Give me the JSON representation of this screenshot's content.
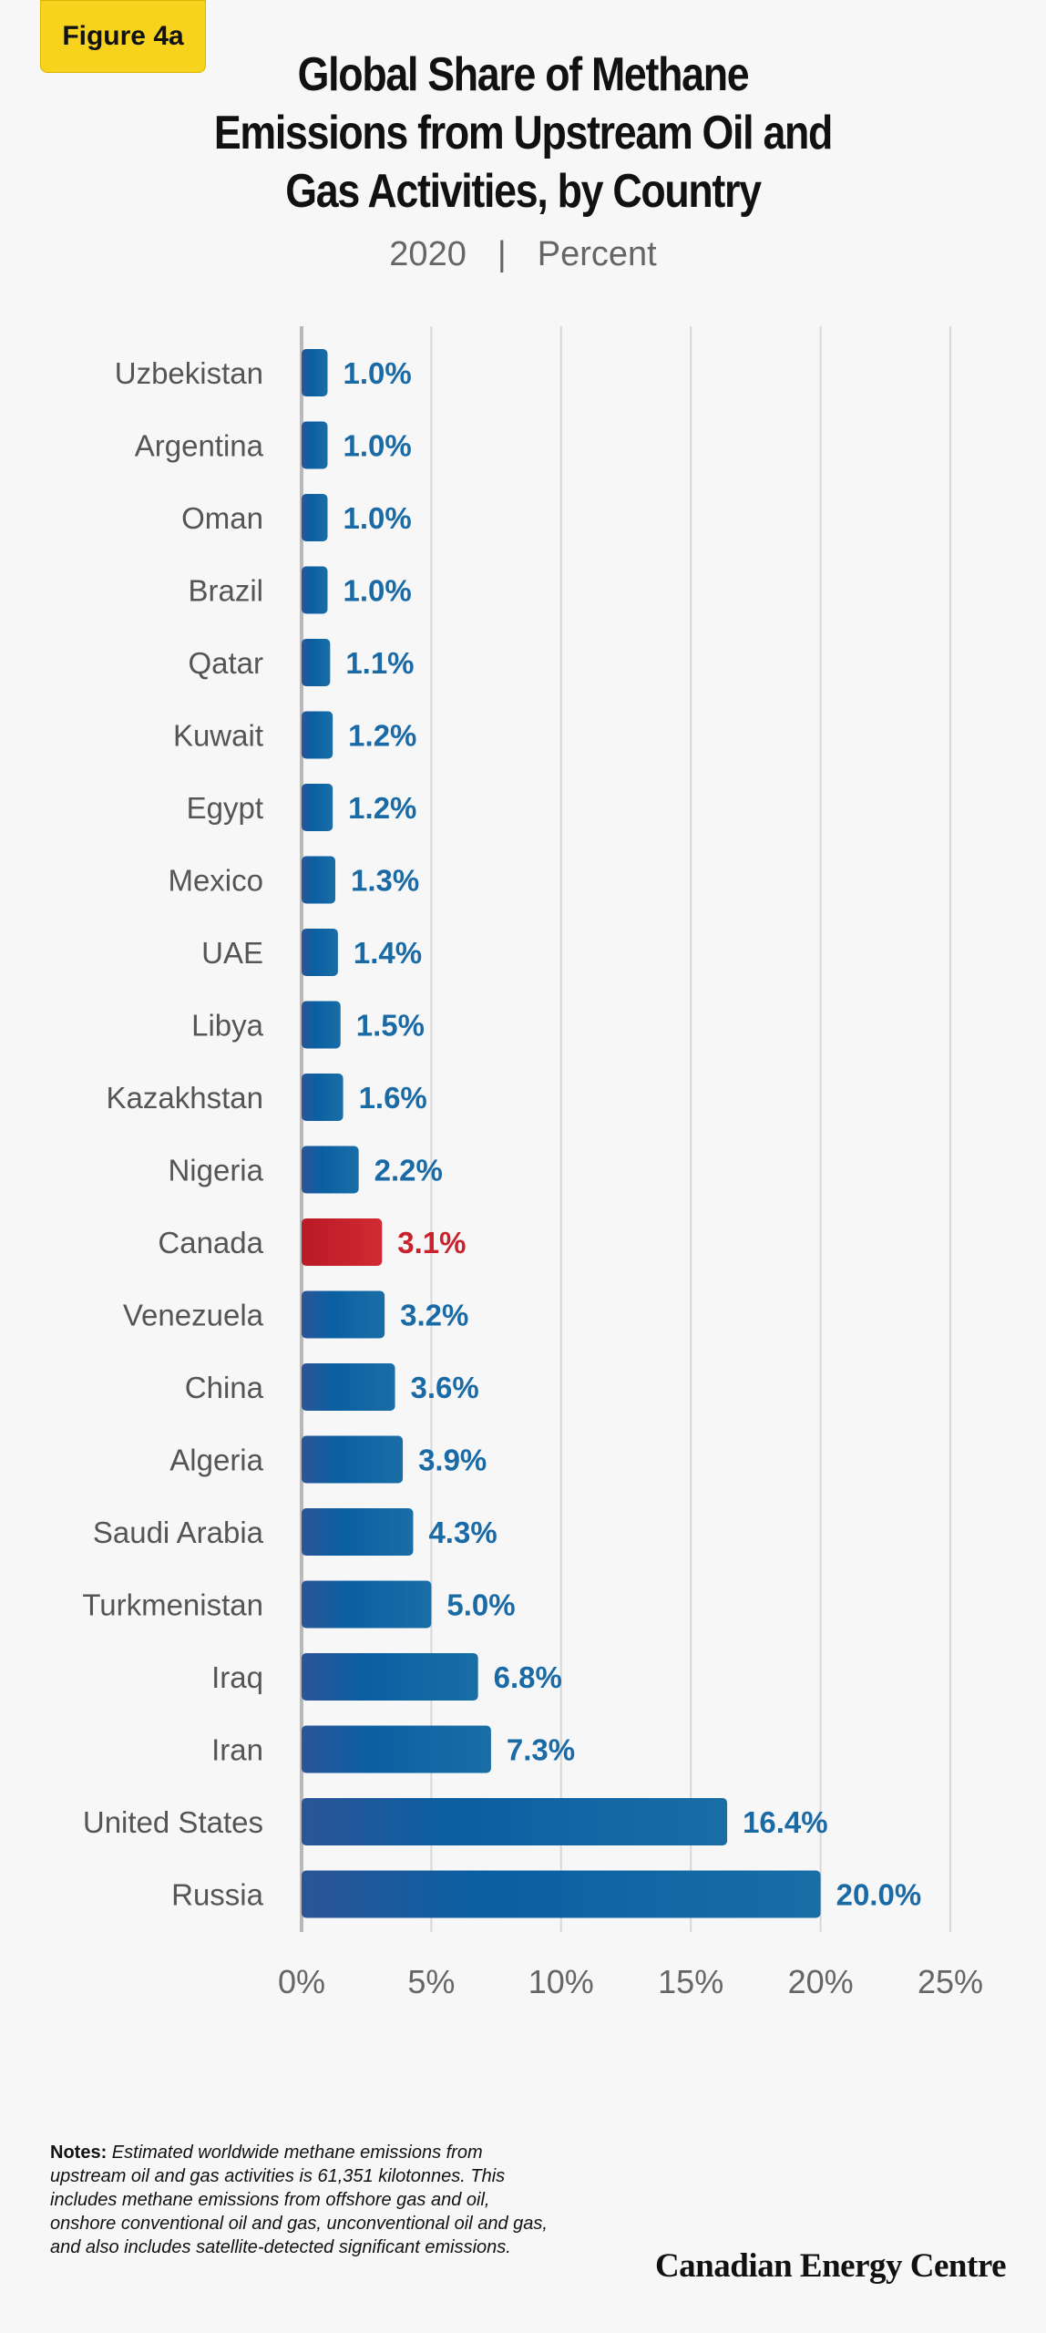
{
  "badge": "Figure 4a",
  "title_lines": [
    "Global Share of Methane",
    "Emissions from Upstream Oil and",
    "Gas Activities, by Country"
  ],
  "subtitle": {
    "year": "2020",
    "separator": "|",
    "unit": "Percent"
  },
  "chart_data": {
    "type": "bar",
    "orientation": "horizontal",
    "title": "Global Share of Methane Emissions from Upstream Oil and Gas Activities, by Country",
    "subtitle": "2020 | Percent",
    "xlabel": "",
    "ylabel": "",
    "xlim": [
      0,
      25
    ],
    "x_ticks": [
      "0%",
      "5%",
      "10%",
      "15%",
      "20%",
      "25%"
    ],
    "x_tick_values": [
      0,
      5,
      10,
      15,
      20,
      25
    ],
    "grid": true,
    "colors": {
      "default": "#1a5f9e",
      "highlight": "#c8232c",
      "label_default": "#1a6aa6",
      "label_highlight": "#c8232c"
    },
    "highlight_category": "Canada",
    "categories": [
      "Uzbekistan",
      "Argentina",
      "Oman",
      "Brazil",
      "Qatar",
      "Kuwait",
      "Egypt",
      "Mexico",
      "UAE",
      "Libya",
      "Kazakhstan",
      "Nigeria",
      "Canada",
      "Venezuela",
      "China",
      "Algeria",
      "Saudi Arabia",
      "Turkmenistan",
      "Iraq",
      "Iran",
      "United States",
      "Russia"
    ],
    "values": [
      1.0,
      1.0,
      1.0,
      1.0,
      1.1,
      1.2,
      1.2,
      1.3,
      1.4,
      1.5,
      1.6,
      2.2,
      3.1,
      3.2,
      3.6,
      3.9,
      4.3,
      5.0,
      6.8,
      7.3,
      16.4,
      20.0
    ],
    "value_labels": [
      "1.0%",
      "1.0%",
      "1.0%",
      "1.0%",
      "1.1%",
      "1.2%",
      "1.2%",
      "1.3%",
      "1.4%",
      "1.5%",
      "1.6%",
      "2.2%",
      "3.1%",
      "3.2%",
      "3.6%",
      "3.9%",
      "4.3%",
      "5.0%",
      "6.8%",
      "7.3%",
      "16.4%",
      "20.0%"
    ]
  },
  "notes": {
    "label": "Notes:",
    "text": "Estimated worldwide methane emissions from upstream oil and gas activities is 61,351 kilotonnes. This includes methane emissions from offshore gas and oil, onshore conventional oil and gas, unconventional oil and gas, and also includes satellite-detected significant emissions."
  },
  "brand": "Canadian Energy Centre"
}
